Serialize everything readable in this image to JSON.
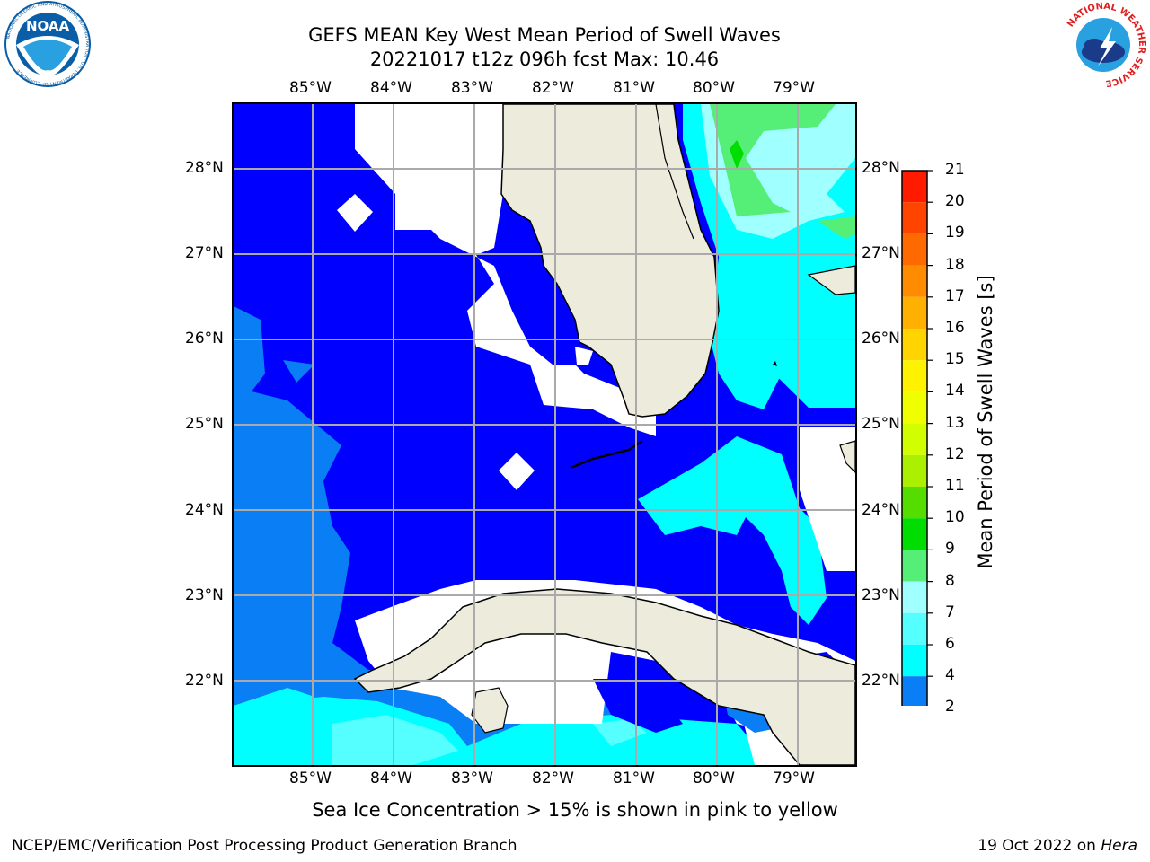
{
  "header": {
    "title_line1": "GEFS MEAN Key West Mean Period of Swell Waves",
    "title_line2": "20221017 t12z 096h fcst   Max: 10.46"
  },
  "logos": {
    "left": {
      "text": "NOAA",
      "ring_text": "NATIONAL OCEANIC AND ATMOSPHERIC ADMINISTRATION · U.S. DEPARTMENT OF COMMERCE",
      "color": "#0a5ea8"
    },
    "right": {
      "ring_text": "NATIONAL WEATHER SERVICE",
      "color": "#e02020"
    }
  },
  "map": {
    "lon_labels": [
      "85°W",
      "84°W",
      "83°W",
      "82°W",
      "81°W",
      "80°W",
      "79°W"
    ],
    "lat_labels": [
      "28°N",
      "27°N",
      "26°N",
      "25°N",
      "24°N",
      "23°N",
      "22°N"
    ],
    "land_color": "#ecebdc",
    "colors": {
      "band_2_4": "#0000ff",
      "band_4_6": "#0a7ff5",
      "band_6_8": "#00ffff",
      "band_8_9": "#55ffff",
      "band_9_10": "#a0ffff",
      "band_10_11": "#55ee77",
      "missing": "#ffffff"
    }
  },
  "colorbar": {
    "title": "Mean Period of Swell Waves [s]",
    "ticks": [
      "21",
      "20",
      "19",
      "18",
      "17",
      "16",
      "15",
      "14",
      "13",
      "12",
      "11",
      "10",
      "9",
      "8",
      "7",
      "6",
      "4",
      "2"
    ],
    "colors": [
      "#ff1a00",
      "#ff4400",
      "#ff6a00",
      "#ff8c00",
      "#ffb000",
      "#ffd400",
      "#fff200",
      "#f0ff00",
      "#d2ff00",
      "#aaf000",
      "#55dd00",
      "#00dd00",
      "#55ee77",
      "#a0ffff",
      "#55ffff",
      "#00ffff",
      "#0a7ff5",
      "#0000ff"
    ]
  },
  "note": "Sea Ice Concentration > 15% is shown in pink to yellow",
  "footer": {
    "left": "NCEP/EMC/Verification Post Processing Product Generation Branch",
    "date": "19 Oct 2022 on",
    "host": "Hera"
  }
}
